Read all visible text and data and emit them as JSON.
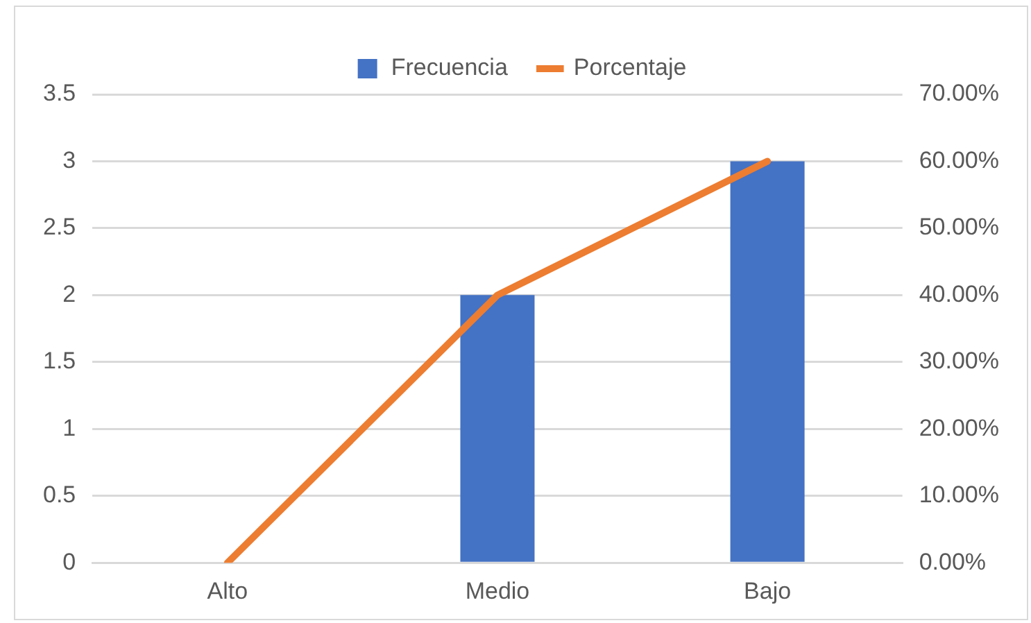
{
  "chart_data": {
    "type": "bar",
    "categories": [
      "Alto",
      "Medio",
      "Bajo"
    ],
    "series": [
      {
        "name": "Frecuencia",
        "color": "#4472c4",
        "values": [
          0,
          2,
          3
        ]
      },
      {
        "name": "Porcentaje",
        "type": "line",
        "axis": "y2",
        "color": "#ed7d31",
        "values": [
          0,
          40,
          60
        ]
      }
    ],
    "ylim": [
      0,
      3.5
    ],
    "yticks": [
      0,
      0.5,
      1,
      1.5,
      2,
      2.5,
      3,
      3.5
    ],
    "y2lim": [
      0,
      70
    ],
    "y2ticks": [
      {
        "value": 0,
        "label": "0.00%"
      },
      {
        "value": 10,
        "label": "10.00%"
      },
      {
        "value": 20,
        "label": "20.00%"
      },
      {
        "value": 30,
        "label": "30.00%"
      },
      {
        "value": 40,
        "label": "40.00%"
      },
      {
        "value": 50,
        "label": "50.00%"
      },
      {
        "value": 60,
        "label": "60.00%"
      },
      {
        "value": 70,
        "label": "70.00%"
      }
    ],
    "grid": "y",
    "legend": "top",
    "marker": "none",
    "line_style": "solid"
  }
}
